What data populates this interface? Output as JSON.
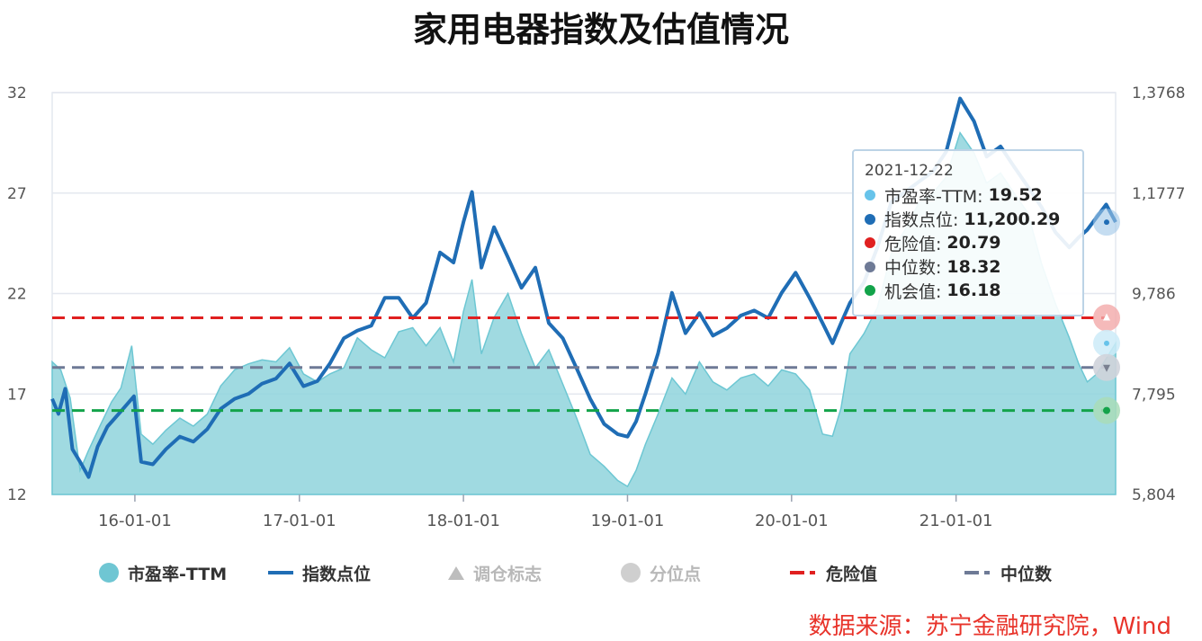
{
  "title": "家用电器指数及估值情况",
  "source": "数据来源：苏宁金融研究院，Wind",
  "colors": {
    "pe_fill": "#8fd3dc",
    "pe_edge": "#6dc7d3",
    "index_line": "#1f6db5",
    "danger": "#e02020",
    "median": "#6e7a96",
    "opportunity": "#13a34a",
    "grid": "#e4e8ef"
  },
  "legend": {
    "pe": "市盈率-TTM",
    "index": "指数点位",
    "adjust": "调仓标志",
    "quantile": "分位点",
    "danger": "危险值",
    "median": "中位数"
  },
  "tooltip": {
    "date": "2021-12-22",
    "rows": [
      {
        "label": "市盈率-TTM:",
        "value": "19.52",
        "color": "#67c3ea"
      },
      {
        "label": "指数点位:",
        "value": "11,200.29",
        "color": "#1f6db5"
      },
      {
        "label": "危险值:",
        "value": "20.79",
        "color": "#e02020"
      },
      {
        "label": "中位数:",
        "value": "18.32",
        "color": "#6e7a96"
      },
      {
        "label": "机会值:",
        "value": "16.18",
        "color": "#13a34a"
      }
    ]
  },
  "chart_data": {
    "type": "area",
    "title": "家用电器指数及估值情况",
    "x_start": "2015-07-01",
    "x_end": "2021-12-22",
    "x_ticks": [
      "16-01-01",
      "17-01-01",
      "18-01-01",
      "19-01-01",
      "20-01-01",
      "21-01-01"
    ],
    "y_left": {
      "range": [
        12,
        32
      ],
      "ticks": [
        "12",
        "17",
        "22",
        "27",
        "32"
      ]
    },
    "y_right": {
      "range": [
        5804,
        13768
      ],
      "ticks": [
        "5,804",
        "7,795",
        "9,786",
        "1,1777",
        "1,3768"
      ]
    },
    "reference_lines": [
      {
        "name": "危险值",
        "value": 20.79
      },
      {
        "name": "中位数",
        "value": 18.32
      },
      {
        "name": "机会值",
        "value": 16.18
      }
    ],
    "series": [
      {
        "name": "市盈率-TTM",
        "axis": "left",
        "points": [
          [
            "2015-07-01",
            18.6
          ],
          [
            "2015-07-20",
            18.2
          ],
          [
            "2015-08-10",
            16.8
          ],
          [
            "2015-09-01",
            13.2
          ],
          [
            "2015-09-20",
            14.2
          ],
          [
            "2015-10-15",
            15.4
          ],
          [
            "2015-11-10",
            16.6
          ],
          [
            "2015-12-01",
            17.3
          ],
          [
            "2015-12-25",
            19.4
          ],
          [
            "2016-01-15",
            15.0
          ],
          [
            "2016-02-10",
            14.5
          ],
          [
            "2016-03-10",
            15.2
          ],
          [
            "2016-04-10",
            15.8
          ],
          [
            "2016-05-10",
            15.4
          ],
          [
            "2016-06-10",
            16.0
          ],
          [
            "2016-07-10",
            17.4
          ],
          [
            "2016-08-10",
            18.2
          ],
          [
            "2016-09-10",
            18.5
          ],
          [
            "2016-10-10",
            18.7
          ],
          [
            "2016-11-10",
            18.6
          ],
          [
            "2016-12-10",
            19.3
          ],
          [
            "2017-01-10",
            18.0
          ],
          [
            "2017-02-10",
            17.6
          ],
          [
            "2017-03-10",
            18.0
          ],
          [
            "2017-04-10",
            18.3
          ],
          [
            "2017-05-10",
            19.8
          ],
          [
            "2017-06-10",
            19.2
          ],
          [
            "2017-07-10",
            18.8
          ],
          [
            "2017-08-10",
            20.1
          ],
          [
            "2017-09-10",
            20.3
          ],
          [
            "2017-10-10",
            19.4
          ],
          [
            "2017-11-10",
            20.3
          ],
          [
            "2017-12-10",
            18.6
          ],
          [
            "2018-01-01",
            21.1
          ],
          [
            "2018-01-20",
            22.7
          ],
          [
            "2018-02-10",
            19.0
          ],
          [
            "2018-03-10",
            20.8
          ],
          [
            "2018-04-10",
            22.0
          ],
          [
            "2018-05-10",
            20.0
          ],
          [
            "2018-06-10",
            18.3
          ],
          [
            "2018-07-10",
            19.2
          ],
          [
            "2018-08-10",
            17.5
          ],
          [
            "2018-09-10",
            15.8
          ],
          [
            "2018-10-10",
            14.0
          ],
          [
            "2018-11-10",
            13.4
          ],
          [
            "2018-12-10",
            12.7
          ],
          [
            "2019-01-01",
            12.4
          ],
          [
            "2019-01-20",
            13.2
          ],
          [
            "2019-02-10",
            14.5
          ],
          [
            "2019-03-10",
            16.0
          ],
          [
            "2019-04-10",
            17.8
          ],
          [
            "2019-05-10",
            17.0
          ],
          [
            "2019-06-10",
            18.6
          ],
          [
            "2019-07-10",
            17.6
          ],
          [
            "2019-08-10",
            17.2
          ],
          [
            "2019-09-10",
            17.8
          ],
          [
            "2019-10-10",
            18.0
          ],
          [
            "2019-11-10",
            17.4
          ],
          [
            "2019-12-10",
            18.2
          ],
          [
            "2020-01-10",
            18.0
          ],
          [
            "2020-02-10",
            17.2
          ],
          [
            "2020-03-10",
            15.0
          ],
          [
            "2020-04-01",
            14.9
          ],
          [
            "2020-04-20",
            16.3
          ],
          [
            "2020-05-10",
            19.0
          ],
          [
            "2020-06-10",
            20.0
          ],
          [
            "2020-07-10",
            21.3
          ],
          [
            "2020-08-10",
            24.0
          ],
          [
            "2020-09-10",
            25.2
          ],
          [
            "2020-10-10",
            26.5
          ],
          [
            "2020-11-10",
            27.0
          ],
          [
            "2020-12-10",
            27.8
          ],
          [
            "2021-01-10",
            30.0
          ],
          [
            "2021-02-10",
            29.0
          ],
          [
            "2021-03-10",
            27.5
          ],
          [
            "2021-04-10",
            28.0
          ],
          [
            "2021-05-10",
            27.0
          ],
          [
            "2021-06-10",
            26.0
          ],
          [
            "2021-07-10",
            23.5
          ],
          [
            "2021-08-10",
            21.5
          ],
          [
            "2021-09-10",
            19.8
          ],
          [
            "2021-10-01",
            18.5
          ],
          [
            "2021-10-20",
            17.6
          ],
          [
            "2021-11-10",
            18.0
          ],
          [
            "2021-12-22",
            19.52
          ]
        ]
      },
      {
        "name": "指数点位",
        "axis": "right",
        "points": [
          [
            "2015-07-01",
            7700
          ],
          [
            "2015-07-15",
            7400
          ],
          [
            "2015-07-30",
            7900
          ],
          [
            "2015-08-15",
            6700
          ],
          [
            "2015-09-01",
            6450
          ],
          [
            "2015-09-20",
            6150
          ],
          [
            "2015-10-10",
            6750
          ],
          [
            "2015-11-01",
            7150
          ],
          [
            "2015-12-01",
            7450
          ],
          [
            "2015-12-30",
            7750
          ],
          [
            "2016-01-15",
            6450
          ],
          [
            "2016-02-10",
            6400
          ],
          [
            "2016-03-10",
            6700
          ],
          [
            "2016-04-10",
            6950
          ],
          [
            "2016-05-10",
            6850
          ],
          [
            "2016-06-10",
            7100
          ],
          [
            "2016-07-10",
            7500
          ],
          [
            "2016-08-10",
            7700
          ],
          [
            "2016-09-10",
            7800
          ],
          [
            "2016-10-10",
            8000
          ],
          [
            "2016-11-10",
            8100
          ],
          [
            "2016-12-10",
            8400
          ],
          [
            "2017-01-10",
            7950
          ],
          [
            "2017-02-10",
            8050
          ],
          [
            "2017-03-10",
            8400
          ],
          [
            "2017-04-10",
            8900
          ],
          [
            "2017-05-10",
            9050
          ],
          [
            "2017-06-10",
            9150
          ],
          [
            "2017-07-10",
            9700
          ],
          [
            "2017-08-10",
            9700
          ],
          [
            "2017-09-10",
            9300
          ],
          [
            "2017-10-10",
            9600
          ],
          [
            "2017-11-10",
            10600
          ],
          [
            "2017-12-10",
            10400
          ],
          [
            "2018-01-01",
            11200
          ],
          [
            "2018-01-20",
            11800
          ],
          [
            "2018-02-10",
            10300
          ],
          [
            "2018-03-10",
            11100
          ],
          [
            "2018-04-10",
            10500
          ],
          [
            "2018-05-10",
            9900
          ],
          [
            "2018-06-10",
            10300
          ],
          [
            "2018-07-10",
            9200
          ],
          [
            "2018-08-10",
            8900
          ],
          [
            "2018-09-10",
            8300
          ],
          [
            "2018-10-10",
            7700
          ],
          [
            "2018-11-10",
            7200
          ],
          [
            "2018-12-10",
            7000
          ],
          [
            "2019-01-01",
            6950
          ],
          [
            "2019-01-20",
            7250
          ],
          [
            "2019-02-10",
            7800
          ],
          [
            "2019-03-10",
            8600
          ],
          [
            "2019-04-10",
            9800
          ],
          [
            "2019-05-10",
            9000
          ],
          [
            "2019-06-10",
            9400
          ],
          [
            "2019-07-10",
            8950
          ],
          [
            "2019-08-10",
            9100
          ],
          [
            "2019-09-10",
            9350
          ],
          [
            "2019-10-10",
            9450
          ],
          [
            "2019-11-10",
            9300
          ],
          [
            "2019-12-10",
            9800
          ],
          [
            "2020-01-10",
            10200
          ],
          [
            "2020-02-10",
            9700
          ],
          [
            "2020-03-10",
            9200
          ],
          [
            "2020-04-01",
            8800
          ],
          [
            "2020-04-20",
            9200
          ],
          [
            "2020-05-10",
            9600
          ],
          [
            "2020-06-10",
            10000
          ],
          [
            "2020-07-10",
            10700
          ],
          [
            "2020-08-10",
            11600
          ],
          [
            "2020-09-10",
            11800
          ],
          [
            "2020-10-10",
            12000
          ],
          [
            "2020-11-10",
            12200
          ],
          [
            "2020-12-10",
            12600
          ],
          [
            "2021-01-10",
            13650
          ],
          [
            "2021-02-10",
            13200
          ],
          [
            "2021-03-10",
            12500
          ],
          [
            "2021-04-10",
            12700
          ],
          [
            "2021-05-10",
            12300
          ],
          [
            "2021-06-10",
            11900
          ],
          [
            "2021-07-10",
            11500
          ],
          [
            "2021-08-10",
            11000
          ],
          [
            "2021-09-10",
            10700
          ],
          [
            "2021-10-01",
            10900
          ],
          [
            "2021-10-20",
            11050
          ],
          [
            "2021-11-10",
            11300
          ],
          [
            "2021-12-01",
            11550
          ],
          [
            "2021-12-22",
            11200
          ]
        ]
      }
    ],
    "legend_position": "bottom",
    "grid": true
  }
}
